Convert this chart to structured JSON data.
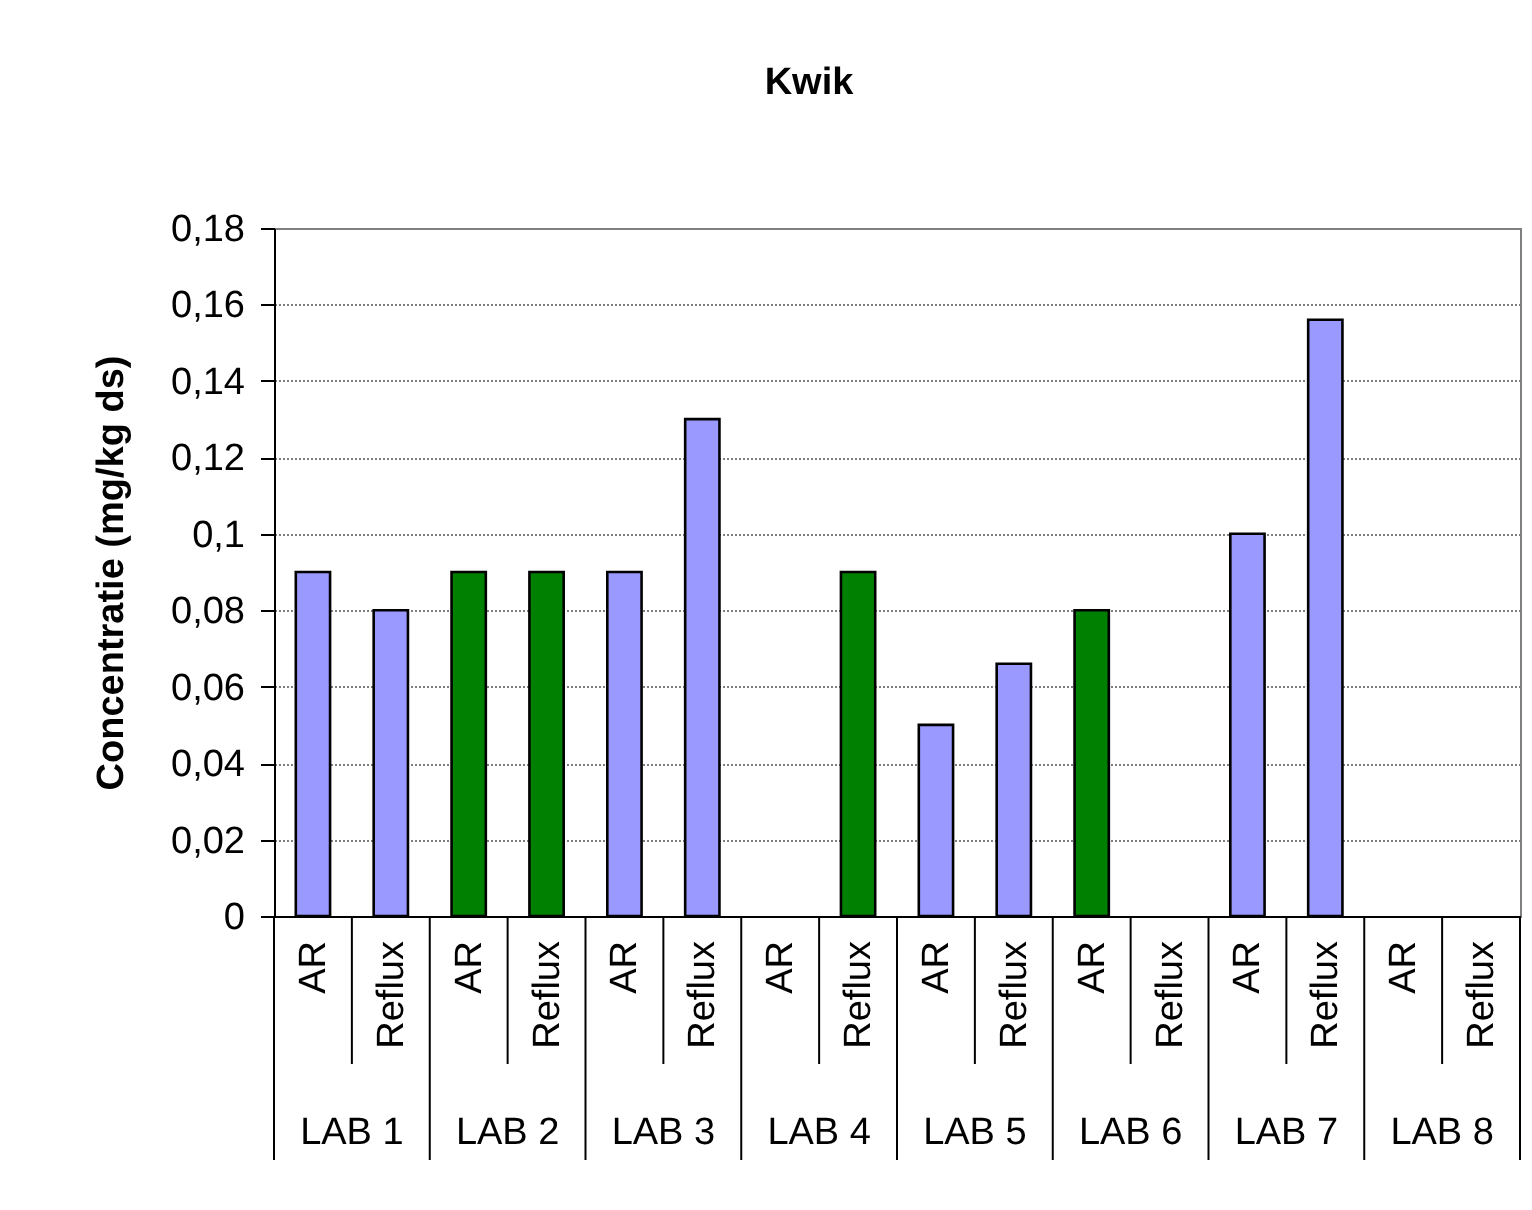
{
  "chart_data": {
    "type": "bar",
    "title": "Kwik",
    "ylabel": "Concentratie (mg/kg ds)",
    "categories": [
      "AR",
      "Reflux",
      "AR",
      "Reflux",
      "AR",
      "Reflux",
      "AR",
      "Reflux",
      "AR",
      "Reflux",
      "AR",
      "Reflux",
      "AR",
      "Reflux",
      "AR",
      "Reflux"
    ],
    "values": [
      0.09,
      0.08,
      0.09,
      0.09,
      0.09,
      0.13,
      null,
      0.09,
      0.05,
      0.066,
      0.08,
      null,
      0.1,
      0.156,
      null,
      null
    ],
    "colors": [
      "#9999ff",
      "#9999ff",
      "#008000",
      "#008000",
      "#9999ff",
      "#9999ff",
      null,
      "#008000",
      "#9999ff",
      "#9999ff",
      "#008000",
      null,
      "#9999ff",
      "#9999ff",
      null,
      null
    ],
    "ylim": [
      0,
      0.18
    ],
    "yticks": [
      0,
      {
        "value": 0.02,
        "label": "0,02"
      },
      {
        "value": 0.04,
        "label": "0,04"
      },
      {
        "value": 0.06,
        "label": "0,06"
      },
      {
        "value": 0.08,
        "label": "0,08"
      },
      {
        "value": 0.1,
        "label": "0,1"
      },
      {
        "value": 0.12,
        "label": "0,12"
      },
      {
        "value": 0.14,
        "label": "0,14"
      },
      {
        "value": 0.16,
        "label": "0,16"
      },
      {
        "value": 0.18,
        "label": "0,18"
      }
    ],
    "grid": "y",
    "annotations": [
      "LAB 1",
      "LAB 2",
      "LAB 3",
      "LAB 4",
      "LAB 5",
      "LAB 6",
      "LAB 7",
      "LAB 8"
    ]
  }
}
